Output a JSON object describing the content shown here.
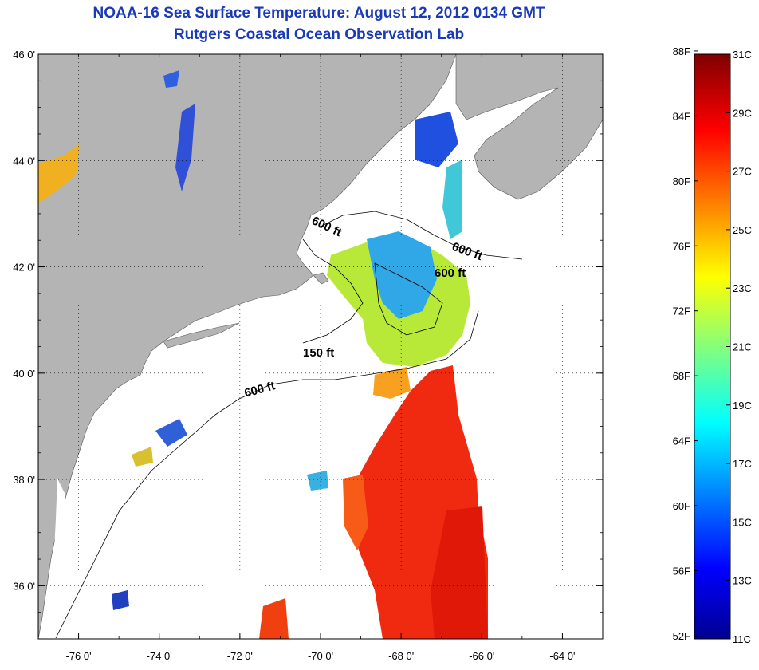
{
  "header": {
    "title": "NOAA-16 Sea Surface Temperature:  August 12, 2012 0134 GMT",
    "subtitle": "Rutgers Coastal Ocean Observation Lab"
  },
  "map": {
    "lat_range": [
      35,
      46
    ],
    "lon_range": [
      -77,
      -63
    ],
    "lat_ticks": [
      {
        "value": 46,
        "label": "46 0'"
      },
      {
        "value": 44,
        "label": "44 0'"
      },
      {
        "value": 42,
        "label": "42 0'"
      },
      {
        "value": 40,
        "label": "40 0'"
      },
      {
        "value": 38,
        "label": "38 0'"
      },
      {
        "value": 36,
        "label": "36 0'"
      }
    ],
    "lon_ticks": [
      {
        "value": -76,
        "label": "-76 0'"
      },
      {
        "value": -74,
        "label": "-74 0'"
      },
      {
        "value": -72,
        "label": "-72 0'"
      },
      {
        "value": -70,
        "label": "-70 0'"
      },
      {
        "value": -68,
        "label": "-68 0'"
      },
      {
        "value": -66,
        "label": "-66 0'"
      },
      {
        "value": -64,
        "label": "-64 0'"
      }
    ],
    "grid": "dotted",
    "land_color": "#b4b4b4",
    "ocean_color": "#ffffff",
    "contour_labels": [
      "600 ft",
      "600 ft",
      "600 ft",
      "150 ft",
      "600 ft"
    ]
  },
  "colorbar": {
    "min_c": 11,
    "max_c": 31,
    "fahrenheit_labels": [
      "88F",
      "84F",
      "80F",
      "76F",
      "72F",
      "68F",
      "64F",
      "60F",
      "56F",
      "52F"
    ],
    "celsius_labels": [
      "31C",
      "29C",
      "27C",
      "25C",
      "23C",
      "21C",
      "19C",
      "17C",
      "15C",
      "13C",
      "11C"
    ],
    "colors": [
      "#00008f",
      "#0000ff",
      "#00ffff",
      "#ffff00",
      "#ff0000",
      "#800000"
    ]
  }
}
